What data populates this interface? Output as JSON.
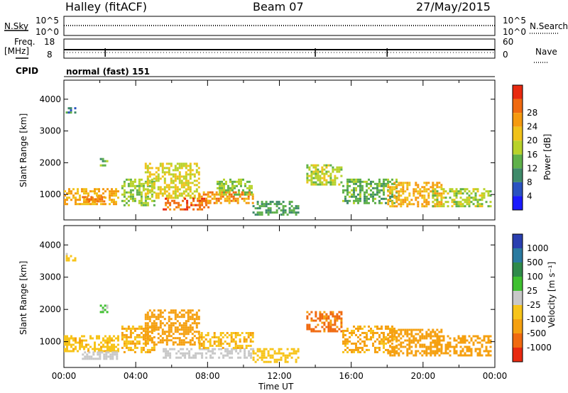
{
  "header": {
    "station": "Halley (fitACF)",
    "beam": "Beam 07",
    "date": "27/May/2015"
  },
  "top_panels": {
    "nsky_label": "N.Sky",
    "nsky_ticks": [
      "10^5",
      "10^0"
    ],
    "nsearch_label": "N.Search",
    "nsearch_ticks": [
      "10^5",
      "10^0"
    ],
    "freq_label": "Freq.",
    "freq_unit": "[MHz]",
    "freq_ticks": [
      "18",
      "8"
    ],
    "nave_label": "Nave",
    "nave_ticks": [
      "60",
      "0"
    ],
    "cpid_label": "CPID",
    "cpid_value": "normal (fast) 151"
  },
  "x_axis": {
    "label": "Time UT",
    "ticks": [
      "00:00",
      "04:00",
      "08:00",
      "12:00",
      "16:00",
      "20:00",
      "00:00"
    ]
  },
  "chart_data": [
    {
      "type": "heatmap",
      "panel": "power",
      "ylabel": "Slant Range [km]",
      "y_ticks": [
        1000,
        2000,
        3000,
        4000
      ],
      "ylim": [
        200,
        4600
      ],
      "xlim_hours": [
        0,
        24
      ],
      "colorbar_label": "Power [dB]",
      "colorbar_ticks": [
        4,
        8,
        12,
        16,
        20,
        24,
        28
      ],
      "colorbar_colors": [
        "#1a1aff",
        "#2a52c0",
        "#3f8a6a",
        "#5fb14a",
        "#b8d22a",
        "#f0c21a",
        "#f59a10",
        "#f06a10",
        "#e82a10"
      ],
      "regions": [
        {
          "t0": 0.0,
          "t1": 3.0,
          "r0": 700,
          "r1": 1200,
          "level": 20
        },
        {
          "t0": 1.0,
          "t1": 2.3,
          "r0": 750,
          "r1": 950,
          "level": 24
        },
        {
          "t0": 3.2,
          "t1": 5.0,
          "r0": 650,
          "r1": 1500,
          "level": 12
        },
        {
          "t0": 4.5,
          "t1": 7.5,
          "r0": 900,
          "r1": 2000,
          "level": 16
        },
        {
          "t0": 5.5,
          "t1": 8.0,
          "r0": 500,
          "r1": 900,
          "level": 26
        },
        {
          "t0": 7.5,
          "t1": 10.5,
          "r0": 700,
          "r1": 1100,
          "level": 22
        },
        {
          "t0": 8.5,
          "t1": 10.5,
          "r0": 1000,
          "r1": 1500,
          "level": 12
        },
        {
          "t0": 10.5,
          "t1": 13.0,
          "r0": 350,
          "r1": 800,
          "level": 8
        },
        {
          "t0": 13.5,
          "t1": 15.5,
          "r0": 1300,
          "r1": 1950,
          "level": 14
        },
        {
          "t0": 15.5,
          "t1": 18.5,
          "r0": 700,
          "r1": 1500,
          "level": 10
        },
        {
          "t0": 18.0,
          "t1": 21.0,
          "r0": 600,
          "r1": 1400,
          "level": 20
        },
        {
          "t0": 20.5,
          "t1": 23.8,
          "r0": 600,
          "r1": 1200,
          "level": 14
        },
        {
          "t0": 0.1,
          "t1": 0.6,
          "r0": 3550,
          "r1": 3750,
          "level": 6
        },
        {
          "t0": 2.0,
          "t1": 2.4,
          "r0": 1900,
          "r1": 2150,
          "level": 10
        }
      ]
    },
    {
      "type": "heatmap",
      "panel": "velocity",
      "ylabel": "Slant Range [km]",
      "y_ticks": [
        1000,
        2000,
        3000,
        4000
      ],
      "ylim": [
        200,
        4600
      ],
      "xlim_hours": [
        0,
        24
      ],
      "colorbar_label": "Velocity [m s⁻¹]",
      "colorbar_ticks": [
        1000,
        500,
        100,
        25,
        -25,
        -100,
        -500,
        -1000
      ],
      "colorbar_colors": [
        "#2a3fb0",
        "#2a7aa0",
        "#2f8a4a",
        "#3fc030",
        "#c8c8c8",
        "#f7c41a",
        "#f5a010",
        "#f06a10",
        "#e82a10"
      ],
      "regions": [
        {
          "t0": 0.0,
          "t1": 3.0,
          "r0": 700,
          "r1": 1200,
          "level": -80
        },
        {
          "t0": 1.0,
          "t1": 3.0,
          "r0": 500,
          "r1": 700,
          "level": 0
        },
        {
          "t0": 3.2,
          "t1": 5.0,
          "r0": 650,
          "r1": 1500,
          "level": -100
        },
        {
          "t0": 4.5,
          "t1": 7.5,
          "r0": 900,
          "r1": 2000,
          "level": -150
        },
        {
          "t0": 5.5,
          "t1": 10.5,
          "r0": 500,
          "r1": 800,
          "level": 0
        },
        {
          "t0": 7.5,
          "t1": 10.5,
          "r0": 800,
          "r1": 1300,
          "level": -90
        },
        {
          "t0": 10.5,
          "t1": 13.0,
          "r0": 350,
          "r1": 800,
          "level": -60
        },
        {
          "t0": 13.5,
          "t1": 15.5,
          "r0": 1300,
          "r1": 1950,
          "level": -600
        },
        {
          "t0": 15.5,
          "t1": 18.5,
          "r0": 700,
          "r1": 1500,
          "level": -120
        },
        {
          "t0": 18.0,
          "t1": 21.0,
          "r0": 600,
          "r1": 1400,
          "level": -200
        },
        {
          "t0": 20.5,
          "t1": 23.8,
          "r0": 600,
          "r1": 1200,
          "level": -150
        },
        {
          "t0": 0.1,
          "t1": 0.6,
          "r0": 3550,
          "r1": 3750,
          "level": -30
        },
        {
          "t0": 2.0,
          "t1": 2.4,
          "r0": 1900,
          "r1": 2150,
          "level": 30
        }
      ]
    }
  ]
}
